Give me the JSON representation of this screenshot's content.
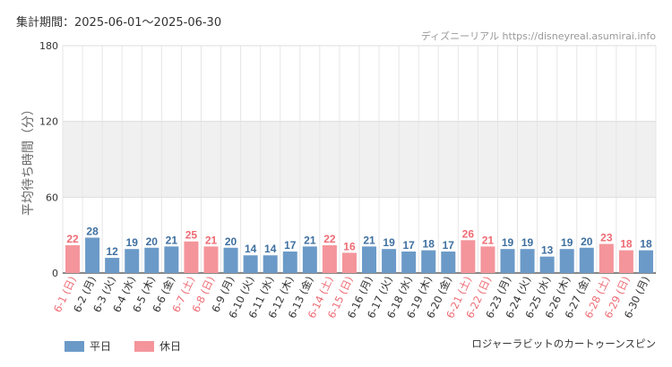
{
  "header": {
    "period": "集計期間：2025-06-01～2025-06-30",
    "source": "ディズニーリアル https://disneyreal.asumirai.info"
  },
  "footer": {
    "attraction": "ロジャーラビットのカートゥーンスピン"
  },
  "colors": {
    "weekday": "#6b9ac8",
    "weekday_label": "#3e6f9f",
    "holiday": "#f4959b",
    "holiday_label": "#ee6b74"
  },
  "chart_data": {
    "type": "bar",
    "ylabel": "平均待ち時間（分）",
    "ylim": [
      0,
      180
    ],
    "yticks": [
      0,
      60,
      120,
      180
    ],
    "grid": true,
    "legend_position": "bottom-left",
    "categories": [
      "6-1 (日)",
      "6-2 (月)",
      "6-3 (火)",
      "6-4 (水)",
      "6-5 (木)",
      "6-6 (金)",
      "6-7 (土)",
      "6-8 (日)",
      "6-9 (月)",
      "6-10 (火)",
      "6-11 (水)",
      "6-12 (木)",
      "6-13 (金)",
      "6-14 (土)",
      "6-15 (日)",
      "6-16 (月)",
      "6-17 (火)",
      "6-18 (水)",
      "6-19 (木)",
      "6-20 (金)",
      "6-21 (土)",
      "6-22 (日)",
      "6-23 (月)",
      "6-24 (火)",
      "6-25 (水)",
      "6-26 (木)",
      "6-27 (金)",
      "6-28 (土)",
      "6-29 (日)",
      "6-30 (月)"
    ],
    "values": [
      22,
      28,
      12,
      19,
      20,
      21,
      25,
      21,
      20,
      14,
      14,
      17,
      21,
      22,
      16,
      21,
      19,
      17,
      18,
      17,
      26,
      21,
      19,
      19,
      13,
      19,
      20,
      23,
      18,
      18
    ],
    "day_types": [
      "holiday",
      "weekday",
      "weekday",
      "weekday",
      "weekday",
      "weekday",
      "holiday",
      "holiday",
      "weekday",
      "weekday",
      "weekday",
      "weekday",
      "weekday",
      "holiday",
      "holiday",
      "weekday",
      "weekday",
      "weekday",
      "weekday",
      "weekday",
      "holiday",
      "holiday",
      "weekday",
      "weekday",
      "weekday",
      "weekday",
      "weekday",
      "holiday",
      "holiday",
      "weekday"
    ],
    "legend": [
      {
        "key": "weekday",
        "label": "平日"
      },
      {
        "key": "holiday",
        "label": "休日"
      }
    ]
  }
}
